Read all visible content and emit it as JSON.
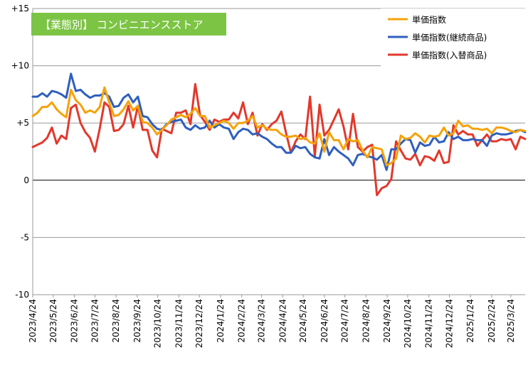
{
  "chart_data": {
    "type": "line",
    "title": "【業態別】 コンビニエンスストア",
    "title_badge_color": "#7cc444",
    "ylim": [
      -10,
      15
    ],
    "ytick_values": [
      -10,
      -5,
      0,
      5,
      10,
      15
    ],
    "ytick_labels": [
      "-10",
      "-5",
      "0",
      "+5",
      "+10",
      "+15"
    ],
    "x_start": "2023-04-24",
    "x_end": "2025-04-14",
    "x_ticks": [
      {
        "date": "2023-04-24",
        "label": "2023/4/24"
      },
      {
        "date": "2023-05-24",
        "label": "2023/5/24"
      },
      {
        "date": "2023-06-24",
        "label": "2023/6/24"
      },
      {
        "date": "2023-07-24",
        "label": "2023/7/24"
      },
      {
        "date": "2023-08-24",
        "label": "2023/8/24"
      },
      {
        "date": "2023-09-24",
        "label": "2023/9/24"
      },
      {
        "date": "2023-10-24",
        "label": "2023/10/24"
      },
      {
        "date": "2023-11-24",
        "label": "2023/11/24"
      },
      {
        "date": "2023-12-24",
        "label": "2023/12/24"
      },
      {
        "date": "2024-01-24",
        "label": "2024/1/24"
      },
      {
        "date": "2024-02-24",
        "label": "2024/2/24"
      },
      {
        "date": "2024-03-24",
        "label": "2024/3/24"
      },
      {
        "date": "2024-04-24",
        "label": "2024/4/24"
      },
      {
        "date": "2024-05-24",
        "label": "2024/5/24"
      },
      {
        "date": "2024-06-24",
        "label": "2024/6/24"
      },
      {
        "date": "2024-07-24",
        "label": "2024/7/24"
      },
      {
        "date": "2024-08-24",
        "label": "2024/8/24"
      },
      {
        "date": "2024-09-24",
        "label": "2024/9/24"
      },
      {
        "date": "2024-10-24",
        "label": "2024/10/24"
      },
      {
        "date": "2024-11-24",
        "label": "2024/11/24"
      },
      {
        "date": "2024-12-24",
        "label": "2024/12/24"
      },
      {
        "date": "2025-01-24",
        "label": "2025/1/24"
      },
      {
        "date": "2025-02-24",
        "label": "2025/2/24"
      },
      {
        "date": "2025-03-24",
        "label": "2025/3/24"
      }
    ],
    "grid": "horizontal",
    "legend_position": "top-right",
    "series": [
      {
        "name": "単価指数",
        "color": "#f5a20a",
        "x": [
          "2023-04-24",
          "2023-05-01",
          "2023-05-08",
          "2023-05-15",
          "2023-05-22",
          "2023-05-29",
          "2023-06-05",
          "2023-06-12",
          "2023-06-19",
          "2023-06-26",
          "2023-07-03",
          "2023-07-10",
          "2023-07-17",
          "2023-07-24",
          "2023-07-31",
          "2023-08-07",
          "2023-08-14",
          "2023-08-21",
          "2023-08-28",
          "2023-09-04",
          "2023-09-11",
          "2023-09-18",
          "2023-09-25",
          "2023-10-02",
          "2023-10-09",
          "2023-10-16",
          "2023-10-23",
          "2023-10-30",
          "2023-11-06",
          "2023-11-13",
          "2023-11-20",
          "2023-11-27",
          "2023-12-04",
          "2023-12-11",
          "2023-12-18",
          "2023-12-25",
          "2024-01-01",
          "2024-01-08",
          "2024-01-15",
          "2024-01-22",
          "2024-01-29",
          "2024-02-05",
          "2024-02-12",
          "2024-02-19",
          "2024-02-26",
          "2024-03-04",
          "2024-03-11",
          "2024-03-18",
          "2024-03-25",
          "2024-04-01",
          "2024-04-08",
          "2024-04-15",
          "2024-04-22",
          "2024-04-29",
          "2024-05-06",
          "2024-05-13",
          "2024-05-20",
          "2024-05-27",
          "2024-06-03",
          "2024-06-10",
          "2024-06-17",
          "2024-06-24",
          "2024-07-01",
          "2024-07-08",
          "2024-07-15",
          "2024-07-22",
          "2024-07-29",
          "2024-08-05",
          "2024-08-12",
          "2024-08-19",
          "2024-08-26",
          "2024-09-02",
          "2024-09-09",
          "2024-09-16",
          "2024-09-23",
          "2024-09-30",
          "2024-10-07",
          "2024-10-14",
          "2024-10-21",
          "2024-10-28",
          "2024-11-04",
          "2024-11-11",
          "2024-11-18",
          "2024-11-25",
          "2024-12-02",
          "2024-12-09",
          "2024-12-16",
          "2024-12-23",
          "2024-12-30",
          "2025-01-06",
          "2025-01-13",
          "2025-01-20",
          "2025-01-27",
          "2025-02-03",
          "2025-02-10",
          "2025-02-17",
          "2025-02-24",
          "2025-03-03",
          "2025-03-10",
          "2025-03-17",
          "2025-03-24",
          "2025-03-31",
          "2025-04-07",
          "2025-04-14"
        ],
        "values": [
          5.6,
          5.9,
          6.4,
          6.4,
          6.8,
          6.2,
          5.8,
          5.5,
          7.9,
          7.0,
          6.6,
          5.9,
          6.1,
          5.9,
          6.4,
          8.1,
          6.8,
          5.6,
          5.7,
          6.2,
          6.9,
          6.1,
          6.5,
          5.1,
          5.0,
          4.6,
          4.0,
          4.4,
          4.8,
          5.3,
          5.5,
          5.7,
          5.5,
          5.8,
          6.3,
          5.6,
          5.6,
          4.6,
          4.8,
          5.0,
          5.2,
          5.0,
          4.5,
          5.0,
          5.0,
          5.2,
          5.6,
          4.6,
          4.8,
          4.5,
          4.4,
          4.4,
          4.0,
          3.8,
          3.8,
          3.9,
          3.6,
          3.7,
          3.3,
          3.2,
          4.1,
          2.5,
          4.2,
          3.5,
          3.5,
          2.7,
          3.6,
          3.4,
          3.5,
          2.6,
          2.0,
          2.9,
          2.8,
          2.7,
          1.3,
          1.5,
          1.9,
          3.9,
          3.6,
          3.7,
          4.1,
          3.8,
          3.3,
          3.9,
          3.8,
          3.9,
          4.6,
          3.9,
          4.1,
          5.2,
          4.7,
          4.8,
          4.5,
          4.5,
          4.4,
          4.5,
          4.1,
          4.6,
          4.6,
          4.5,
          4.3,
          4.2,
          4.4,
          4.3
        ]
      },
      {
        "name": "単価指数(継続商品)",
        "color": "#2f5fbe",
        "x": [
          "2023-04-24",
          "2023-05-01",
          "2023-05-08",
          "2023-05-15",
          "2023-05-22",
          "2023-05-29",
          "2023-06-05",
          "2023-06-12",
          "2023-06-19",
          "2023-06-26",
          "2023-07-03",
          "2023-07-10",
          "2023-07-17",
          "2023-07-24",
          "2023-07-31",
          "2023-08-07",
          "2023-08-14",
          "2023-08-21",
          "2023-08-28",
          "2023-09-04",
          "2023-09-11",
          "2023-09-18",
          "2023-09-25",
          "2023-10-02",
          "2023-10-09",
          "2023-10-16",
          "2023-10-23",
          "2023-10-30",
          "2023-11-06",
          "2023-11-13",
          "2023-11-20",
          "2023-11-27",
          "2023-12-04",
          "2023-12-11",
          "2023-12-18",
          "2023-12-25",
          "2024-01-01",
          "2024-01-08",
          "2024-01-15",
          "2024-01-22",
          "2024-01-29",
          "2024-02-05",
          "2024-02-12",
          "2024-02-19",
          "2024-02-26",
          "2024-03-04",
          "2024-03-11",
          "2024-03-18",
          "2024-03-25",
          "2024-04-01",
          "2024-04-08",
          "2024-04-15",
          "2024-04-22",
          "2024-04-29",
          "2024-05-06",
          "2024-05-13",
          "2024-05-20",
          "2024-05-27",
          "2024-06-03",
          "2024-06-10",
          "2024-06-17",
          "2024-06-24",
          "2024-07-01",
          "2024-07-08",
          "2024-07-15",
          "2024-07-22",
          "2024-07-29",
          "2024-08-05",
          "2024-08-12",
          "2024-08-19",
          "2024-08-26",
          "2024-09-02",
          "2024-09-09",
          "2024-09-16",
          "2024-09-23",
          "2024-09-30",
          "2024-10-07",
          "2024-10-14",
          "2024-10-21",
          "2024-10-28",
          "2024-11-04",
          "2024-11-11",
          "2024-11-18",
          "2024-11-25",
          "2024-12-02",
          "2024-12-09",
          "2024-12-16",
          "2024-12-23",
          "2024-12-30",
          "2025-01-06",
          "2025-01-13",
          "2025-01-20",
          "2025-01-27",
          "2025-02-03",
          "2025-02-10",
          "2025-02-17",
          "2025-02-24",
          "2025-03-03",
          "2025-03-10",
          "2025-03-17",
          "2025-03-24",
          "2025-03-31",
          "2025-04-07",
          "2025-04-14"
        ],
        "values": [
          7.3,
          7.3,
          7.6,
          7.3,
          7.8,
          7.7,
          7.5,
          7.2,
          9.3,
          7.8,
          7.9,
          7.5,
          7.2,
          7.4,
          7.4,
          7.6,
          7.3,
          6.4,
          6.5,
          7.2,
          7.5,
          6.8,
          7.3,
          5.6,
          5.5,
          4.9,
          4.5,
          4.4,
          4.9,
          5.1,
          5.2,
          5.3,
          4.6,
          4.4,
          4.8,
          4.5,
          4.6,
          5.2,
          4.6,
          4.9,
          4.6,
          4.5,
          3.6,
          4.2,
          4.5,
          4.4,
          4.0,
          4.1,
          3.8,
          3.6,
          3.2,
          2.9,
          2.9,
          2.4,
          2.4,
          3.0,
          2.8,
          2.9,
          2.3,
          2.0,
          1.9,
          3.6,
          2.2,
          2.9,
          2.5,
          2.2,
          1.9,
          1.3,
          2.2,
          2.3,
          2.1,
          2.0,
          1.8,
          2.2,
          0.9,
          2.7,
          2.7,
          3.2,
          3.6,
          3.5,
          2.4,
          3.3,
          3.0,
          3.1,
          3.8,
          3.3,
          3.4,
          4.2,
          3.6,
          3.8,
          3.5,
          3.5,
          3.6,
          3.5,
          3.5,
          3.0,
          3.9,
          4.1,
          4.0,
          4.0,
          4.1,
          4.3,
          4.4,
          4.2
        ]
      },
      {
        "name": "単価指数(入替商品)",
        "color": "#e2382c",
        "x": [
          "2023-04-24",
          "2023-05-01",
          "2023-05-08",
          "2023-05-15",
          "2023-05-22",
          "2023-05-29",
          "2023-06-05",
          "2023-06-12",
          "2023-06-19",
          "2023-06-26",
          "2023-07-03",
          "2023-07-10",
          "2023-07-17",
          "2023-07-24",
          "2023-07-31",
          "2023-08-07",
          "2023-08-14",
          "2023-08-21",
          "2023-08-28",
          "2023-09-04",
          "2023-09-11",
          "2023-09-18",
          "2023-09-25",
          "2023-10-02",
          "2023-10-09",
          "2023-10-16",
          "2023-10-23",
          "2023-10-30",
          "2023-11-06",
          "2023-11-13",
          "2023-11-20",
          "2023-11-27",
          "2023-12-04",
          "2023-12-11",
          "2023-12-18",
          "2023-12-25",
          "2024-01-01",
          "2024-01-08",
          "2024-01-15",
          "2024-01-22",
          "2024-01-29",
          "2024-02-05",
          "2024-02-12",
          "2024-02-19",
          "2024-02-26",
          "2024-03-04",
          "2024-03-11",
          "2024-03-18",
          "2024-03-25",
          "2024-04-01",
          "2024-04-08",
          "2024-04-15",
          "2024-04-22",
          "2024-04-29",
          "2024-05-06",
          "2024-05-13",
          "2024-05-20",
          "2024-05-27",
          "2024-06-03",
          "2024-06-10",
          "2024-06-17",
          "2024-06-24",
          "2024-07-01",
          "2024-07-08",
          "2024-07-15",
          "2024-07-22",
          "2024-07-29",
          "2024-08-05",
          "2024-08-12",
          "2024-08-19",
          "2024-08-26",
          "2024-09-02",
          "2024-09-09",
          "2024-09-16",
          "2024-09-23",
          "2024-09-30",
          "2024-10-07",
          "2024-10-14",
          "2024-10-21",
          "2024-10-28",
          "2024-11-04",
          "2024-11-11",
          "2024-11-18",
          "2024-11-25",
          "2024-12-02",
          "2024-12-09",
          "2024-12-16",
          "2024-12-23",
          "2024-12-30",
          "2025-01-06",
          "2025-01-13",
          "2025-01-20",
          "2025-01-27",
          "2025-02-03",
          "2025-02-10",
          "2025-02-17",
          "2025-02-24",
          "2025-03-03",
          "2025-03-10",
          "2025-03-17",
          "2025-03-24",
          "2025-03-31",
          "2025-04-07",
          "2025-04-14"
        ],
        "values": [
          2.9,
          3.1,
          3.3,
          3.7,
          4.6,
          3.2,
          3.9,
          3.6,
          6.3,
          6.6,
          5.0,
          4.2,
          3.7,
          2.5,
          4.5,
          6.8,
          6.4,
          4.3,
          4.4,
          4.9,
          6.5,
          4.6,
          6.5,
          4.4,
          4.4,
          2.6,
          2.0,
          4.5,
          4.3,
          4.1,
          5.9,
          5.9,
          6.1,
          4.9,
          8.4,
          5.7,
          5.1,
          4.4,
          5.3,
          5.1,
          5.3,
          5.3,
          5.9,
          5.4,
          6.8,
          4.9,
          5.9,
          3.9,
          4.9,
          4.4,
          4.9,
          5.2,
          6.0,
          4.1,
          2.4,
          3.4,
          4.0,
          3.6,
          7.3,
          2.1,
          6.6,
          3.9,
          4.4,
          5.3,
          6.2,
          4.7,
          2.7,
          5.8,
          2.9,
          2.5,
          2.9,
          3.1,
          -1.3,
          -0.7,
          -0.5,
          0.1,
          3.4,
          2.6,
          1.9,
          1.8,
          2.3,
          1.3,
          2.1,
          2.0,
          1.7,
          2.6,
          1.5,
          1.6,
          4.8,
          4.0,
          4.3,
          4.0,
          4.0,
          3.0,
          3.5,
          4.0,
          3.4,
          3.4,
          3.6,
          3.5,
          3.6,
          2.7,
          3.8,
          3.6
        ]
      }
    ]
  }
}
